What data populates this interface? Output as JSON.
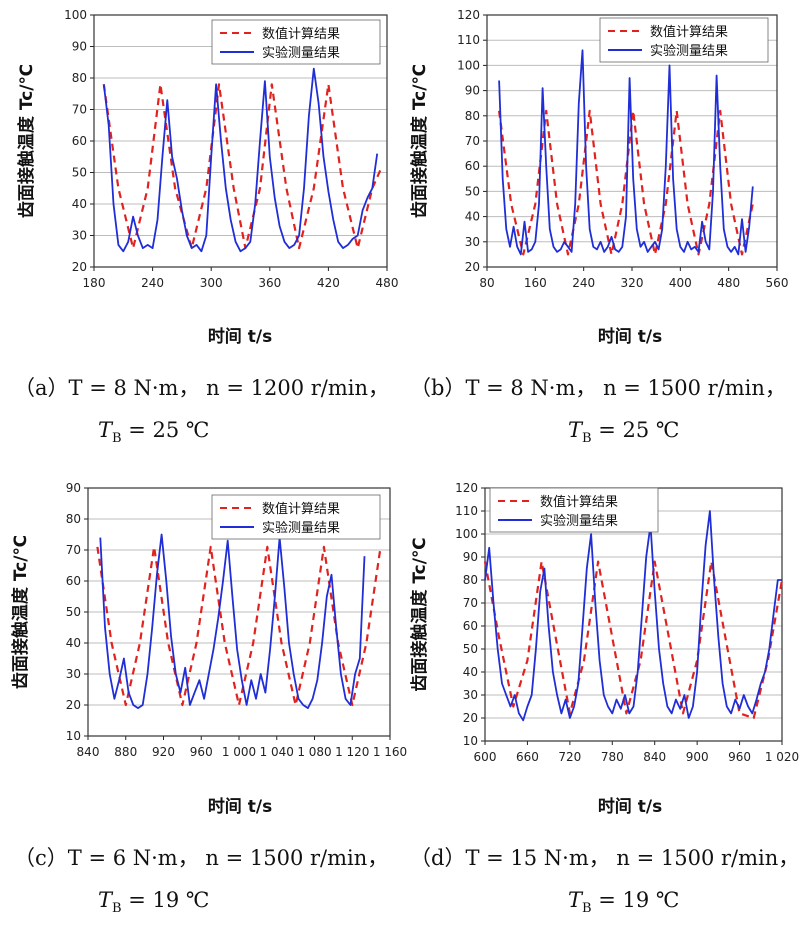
{
  "chart_data": [
    {
      "panel": "a",
      "type": "line",
      "xlabel": "时间 t/s",
      "ylabel": "齿面接触温度 Tc/℃",
      "xlim": [
        180,
        480
      ],
      "ylim": [
        20,
        100
      ],
      "xticks": [
        "180",
        "240",
        "300",
        "360",
        "420",
        "480"
      ],
      "yticks": [
        "20",
        "30",
        "40",
        "50",
        "60",
        "70",
        "80",
        "90",
        "100"
      ],
      "grid": true,
      "legend_position": "top-right",
      "caption_line1": "（a）T = 8 N·m， n = 1200 r/min，",
      "caption_t": "T",
      "caption_sub": "B",
      "caption_rest": " = 25 ℃",
      "series": [
        {
          "name": "数值计算结果",
          "style": "dashed",
          "color": "#e0231f",
          "x": [
            190,
            205,
            220,
            235,
            248,
            263,
            280,
            295,
            308,
            323,
            335,
            350,
            362,
            377,
            390,
            405,
            420,
            435,
            450,
            465,
            475
          ],
          "y": [
            78,
            45,
            26,
            45,
            78,
            45,
            26,
            45,
            78,
            45,
            26,
            45,
            78,
            45,
            26,
            45,
            78,
            45,
            26,
            45,
            52
          ]
        },
        {
          "name": "实验测量结果",
          "style": "solid",
          "color": "#1f2ed6",
          "x": [
            190,
            195,
            200,
            205,
            210,
            215,
            220,
            225,
            230,
            235,
            240,
            245,
            250,
            255,
            260,
            265,
            270,
            275,
            280,
            285,
            290,
            295,
            300,
            305,
            310,
            315,
            320,
            325,
            330,
            335,
            340,
            345,
            350,
            355,
            360,
            365,
            370,
            375,
            380,
            385,
            390,
            395,
            400,
            405,
            410,
            415,
            420,
            425,
            430,
            435,
            440,
            445,
            450,
            455,
            460,
            465,
            470
          ],
          "y": [
            78,
            65,
            40,
            27,
            25,
            28,
            36,
            30,
            26,
            27,
            26,
            35,
            55,
            73,
            55,
            48,
            38,
            30,
            26,
            27,
            25,
            30,
            55,
            78,
            60,
            45,
            35,
            28,
            25,
            26,
            28,
            40,
            60,
            79,
            55,
            42,
            33,
            28,
            26,
            27,
            30,
            45,
            68,
            83,
            72,
            55,
            44,
            35,
            28,
            26,
            27,
            29,
            30,
            38,
            42,
            45,
            56
          ]
        }
      ]
    },
    {
      "panel": "b",
      "type": "line",
      "xlabel": "时间 t/s",
      "ylabel": "齿面接触温度 Tc/℃",
      "xlim": [
        80,
        560
      ],
      "ylim": [
        20,
        120
      ],
      "xticks": [
        "80",
        "160",
        "240",
        "320",
        "400",
        "480",
        "560"
      ],
      "yticks": [
        "20",
        "30",
        "40",
        "50",
        "60",
        "70",
        "80",
        "90",
        "100",
        "110",
        "120"
      ],
      "grid": true,
      "legend_position": "top-right",
      "caption_line1": "（b）T = 8 N·m， n = 1500 r/min，",
      "caption_t": "T",
      "caption_sub": "B",
      "caption_rest": " = 25 ℃",
      "series": [
        {
          "name": "数值计算结果",
          "style": "dashed",
          "color": "#e0231f",
          "x": [
            100,
            120,
            140,
            160,
            178,
            196,
            214,
            232,
            250,
            268,
            286,
            304,
            322,
            340,
            358,
            376,
            394,
            412,
            430,
            448,
            466,
            484,
            502,
            520
          ],
          "y": [
            82,
            45,
            25,
            45,
            82,
            45,
            25,
            45,
            82,
            45,
            25,
            45,
            82,
            45,
            25,
            45,
            82,
            45,
            25,
            45,
            82,
            45,
            25,
            45
          ]
        },
        {
          "name": "实验测量结果",
          "style": "solid",
          "color": "#1f2ed6",
          "x": [
            100,
            106,
            112,
            118,
            124,
            130,
            136,
            142,
            148,
            154,
            160,
            166,
            172,
            178,
            184,
            190,
            196,
            202,
            208,
            214,
            220,
            226,
            232,
            238,
            244,
            250,
            256,
            262,
            268,
            274,
            280,
            286,
            292,
            298,
            304,
            310,
            316,
            322,
            328,
            334,
            340,
            346,
            352,
            358,
            364,
            370,
            376,
            382,
            388,
            394,
            400,
            406,
            412,
            418,
            424,
            430,
            436,
            442,
            448,
            454,
            460,
            466,
            472,
            478,
            484,
            490,
            496,
            502,
            508,
            514,
            520
          ],
          "y": [
            94,
            55,
            35,
            28,
            36,
            28,
            25,
            38,
            26,
            27,
            30,
            45,
            91,
            60,
            35,
            28,
            26,
            27,
            30,
            28,
            26,
            45,
            85,
            106,
            60,
            35,
            28,
            27,
            30,
            26,
            28,
            32,
            27,
            26,
            28,
            40,
            95,
            55,
            35,
            28,
            30,
            26,
            28,
            30,
            27,
            35,
            60,
            100,
            55,
            35,
            28,
            26,
            30,
            27,
            28,
            26,
            38,
            30,
            27,
            50,
            96,
            60,
            35,
            28,
            26,
            28,
            25,
            39,
            26,
            36,
            52
          ]
        }
      ]
    },
    {
      "panel": "c",
      "type": "line",
      "xlabel": "时间 t/s",
      "ylabel": "齿面接触温度 Tc/℃",
      "xlim": [
        840,
        1160
      ],
      "ylim": [
        10,
        90
      ],
      "xticks": [
        "840",
        "880",
        "920",
        "960",
        "1 000",
        "1 040",
        "1 080",
        "1 120",
        "1 160"
      ],
      "yticks": [
        "10",
        "20",
        "30",
        "40",
        "50",
        "60",
        "70",
        "80",
        "90"
      ],
      "grid": true,
      "legend_position": "top-right",
      "caption_line1": "（c）T = 6 N·m， n = 1500 r/min，",
      "caption_t": "T",
      "caption_sub": "B",
      "caption_rest": " = 19 ℃",
      "series": [
        {
          "name": "数值计算结果",
          "style": "dashed",
          "color": "#e0231f",
          "x": [
            850,
            865,
            880,
            895,
            910,
            925,
            940,
            955,
            970,
            985,
            1000,
            1015,
            1030,
            1045,
            1060,
            1075,
            1090,
            1105,
            1120,
            1135,
            1150
          ],
          "y": [
            71,
            40,
            20,
            40,
            71,
            40,
            20,
            40,
            71,
            40,
            20,
            40,
            71,
            40,
            20,
            40,
            71,
            40,
            20,
            40,
            71
          ]
        },
        {
          "name": "实验测量结果",
          "style": "solid",
          "color": "#1f2ed6",
          "x": [
            853,
            858,
            863,
            868,
            873,
            878,
            883,
            888,
            893,
            898,
            903,
            908,
            913,
            918,
            923,
            928,
            933,
            938,
            943,
            948,
            953,
            958,
            963,
            968,
            973,
            978,
            983,
            988,
            993,
            998,
            1003,
            1008,
            1013,
            1018,
            1023,
            1028,
            1033,
            1038,
            1043,
            1048,
            1053,
            1058,
            1063,
            1068,
            1073,
            1078,
            1083,
            1088,
            1093,
            1098,
            1103,
            1108,
            1113,
            1118,
            1123,
            1128,
            1133
          ],
          "y": [
            74,
            45,
            30,
            22,
            28,
            35,
            24,
            20,
            19,
            20,
            30,
            45,
            62,
            75,
            60,
            42,
            30,
            24,
            32,
            20,
            24,
            28,
            22,
            30,
            38,
            48,
            60,
            73,
            55,
            38,
            28,
            20,
            28,
            22,
            30,
            24,
            38,
            55,
            74,
            58,
            40,
            30,
            22,
            20,
            19,
            22,
            28,
            40,
            55,
            62,
            45,
            30,
            22,
            20,
            30,
            35,
            68
          ]
        }
      ]
    },
    {
      "panel": "d",
      "type": "line",
      "xlabel": "时间 t/s",
      "ylabel": "齿面接触温度 Tc/℃",
      "xlim": [
        600,
        1020
      ],
      "ylim": [
        10,
        120
      ],
      "xticks": [
        "600",
        "660",
        "720",
        "780",
        "840",
        "900",
        "960",
        "1 020"
      ],
      "yticks": [
        "10",
        "20",
        "30",
        "40",
        "50",
        "60",
        "70",
        "80",
        "90",
        "100",
        "110",
        "120"
      ],
      "grid": true,
      "legend_position": "top-left",
      "caption_line1": "（d）T = 15 N·m， n = 1500 r/min，",
      "caption_t": "T",
      "caption_sub": "B",
      "caption_rest": " = 19 ℃",
      "series": [
        {
          "name": "数值计算结果",
          "style": "dashed",
          "color": "#e0231f",
          "x": [
            600,
            620,
            640,
            660,
            680,
            700,
            720,
            740,
            760,
            780,
            800,
            820,
            840,
            860,
            880,
            900,
            920,
            940,
            960,
            980,
            1000,
            1020
          ],
          "y": [
            88,
            55,
            25,
            45,
            88,
            55,
            22,
            45,
            88,
            55,
            22,
            45,
            88,
            55,
            22,
            45,
            88,
            55,
            22,
            20,
            45,
            80
          ]
        },
        {
          "name": "实验测量结果",
          "style": "solid",
          "color": "#1f2ed6",
          "x": [
            600,
            606,
            612,
            618,
            624,
            630,
            636,
            642,
            648,
            654,
            660,
            666,
            672,
            678,
            684,
            690,
            696,
            702,
            708,
            714,
            720,
            726,
            732,
            738,
            744,
            750,
            756,
            762,
            768,
            774,
            780,
            786,
            792,
            798,
            804,
            810,
            816,
            822,
            828,
            834,
            840,
            846,
            852,
            858,
            864,
            870,
            876,
            882,
            888,
            894,
            900,
            906,
            912,
            918,
            924,
            930,
            936,
            942,
            948,
            954,
            960,
            966,
            972,
            978,
            984,
            990,
            996,
            1002,
            1008,
            1014,
            1020
          ],
          "y": [
            80,
            94,
            70,
            50,
            35,
            30,
            25,
            30,
            22,
            19,
            25,
            30,
            50,
            75,
            85,
            60,
            40,
            30,
            22,
            28,
            20,
            25,
            35,
            60,
            85,
            100,
            70,
            45,
            30,
            25,
            22,
            28,
            24,
            30,
            22,
            25,
            40,
            65,
            90,
            104,
            75,
            50,
            35,
            25,
            22,
            28,
            24,
            30,
            20,
            25,
            40,
            70,
            95,
            110,
            80,
            55,
            35,
            25,
            22,
            28,
            24,
            30,
            25,
            22,
            28,
            35,
            40,
            50,
            65,
            80,
            80
          ]
        }
      ]
    }
  ]
}
